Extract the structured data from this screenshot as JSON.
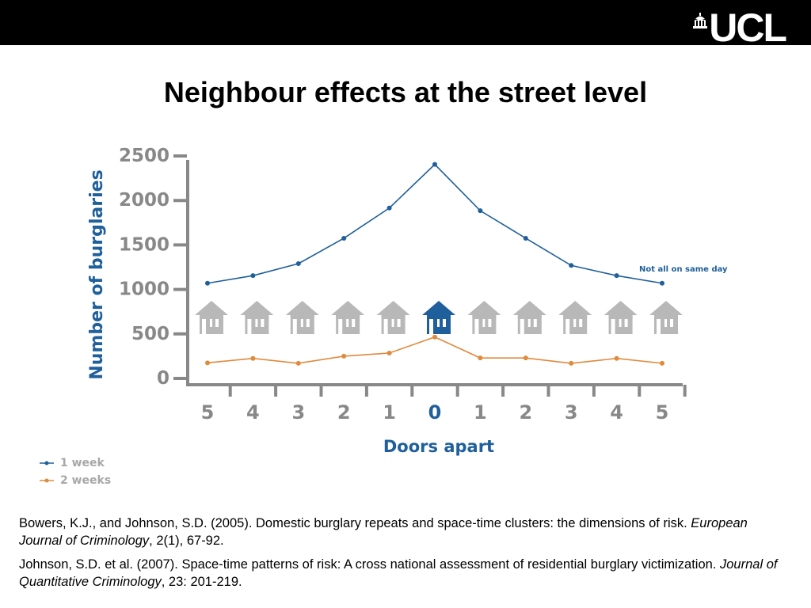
{
  "header": {
    "logo_text": "UCL"
  },
  "slide": {
    "title": "Neighbour effects at the street level"
  },
  "chart_data": {
    "type": "line",
    "categories": [
      "5",
      "4",
      "3",
      "2",
      "1",
      "0",
      "1",
      "2",
      "3",
      "4",
      "5"
    ],
    "series": [
      {
        "name": "1 week",
        "values": [
          1070,
          1155,
          1290,
          1575,
          1915,
          2405,
          1885,
          1575,
          1270,
          1155,
          1070
        ],
        "color": "#1f5f9b"
      },
      {
        "name": "2 weeks",
        "values": [
          175,
          225,
          170,
          250,
          285,
          465,
          230,
          230,
          170,
          225,
          170
        ],
        "color": "#e08a3c"
      }
    ],
    "ylabel": "Number of burglaries",
    "xlabel": "Doors apart",
    "ylim": [
      0,
      2500
    ],
    "yticks": [
      "2500",
      "2000",
      "1500",
      "1000",
      "500",
      "0"
    ],
    "annotation": "Not all on same day",
    "house_colors": {
      "default": "#b8b8b8",
      "highlight": "#1f5f9b"
    },
    "highlight_index": 5
  },
  "references": [
    {
      "before": "Bowers, K.J., and Johnson, S.D. (2005). Domestic burglary repeats and space-time clusters: the dimensions of risk. ",
      "journal": "European Journal of Criminology",
      "after": ", 2(1), 67-92."
    },
    {
      "before": "Johnson, S.D. et al. (2007). Space-time patterns of risk: A cross national assessment of residential burglary victimization. ",
      "journal": "Journal of Quantitative Criminology",
      "after": ", 23: 201-219."
    }
  ]
}
